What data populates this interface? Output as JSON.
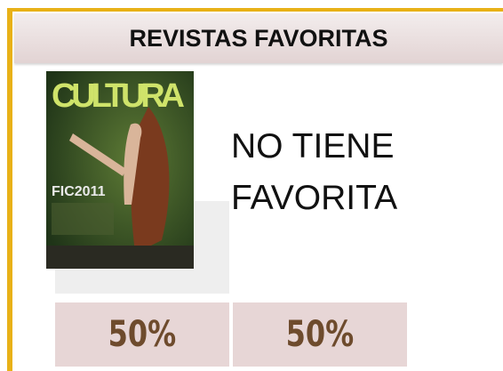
{
  "header": {
    "title": "REVISTAS FAVORITAS"
  },
  "cover": {
    "masthead": "CULTURA",
    "headline": "FIC2011"
  },
  "message": [
    "NO TIENE",
    "FAVORITA"
  ],
  "stats": [
    "50%",
    "50%"
  ]
}
